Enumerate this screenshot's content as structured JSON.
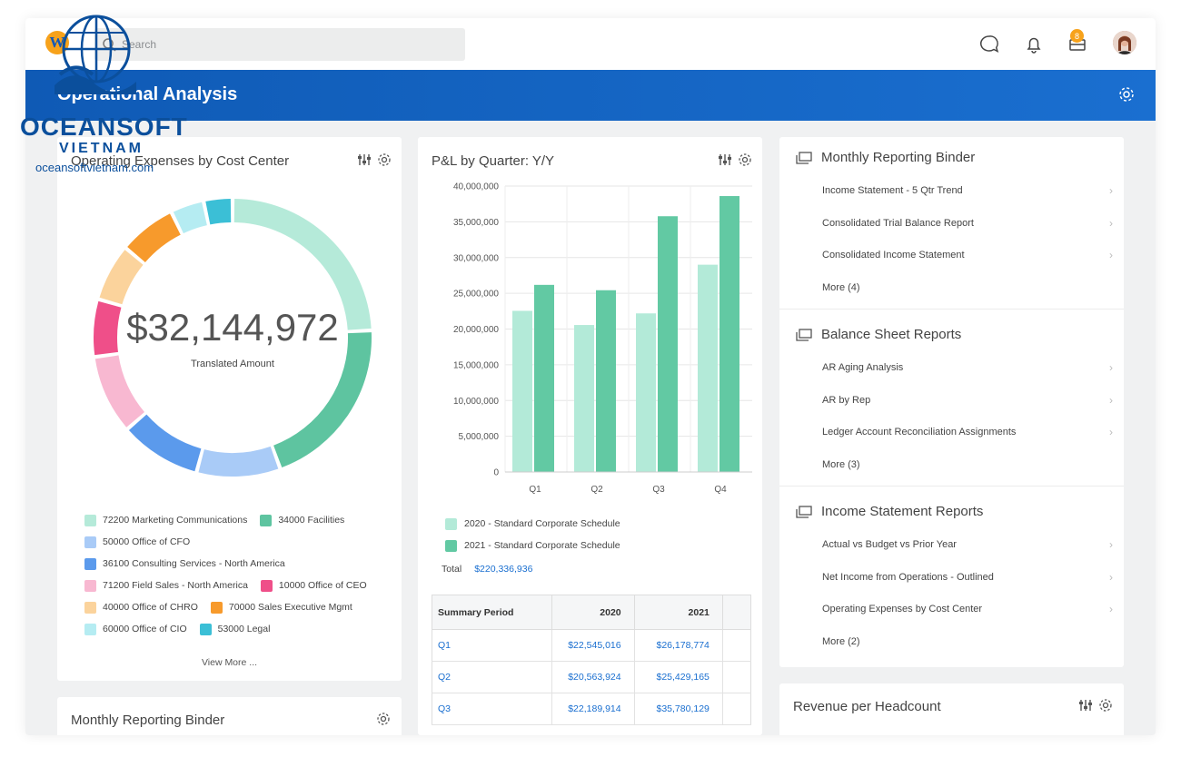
{
  "topbar": {
    "logo_letter": "W",
    "search_placeholder": "Search",
    "inbox_badge": "8"
  },
  "banner": {
    "title": "Operational Analysis"
  },
  "donut_card": {
    "title": "Operating Expenses by Cost Center",
    "center_value": "$32,144,972",
    "center_label": "Translated Amount",
    "view_more": "View More ...",
    "legend": [
      {
        "label": "72200 Marketing Communications",
        "color": "#b5ead9"
      },
      {
        "label": "34000 Facilities",
        "color": "#5ec4a0"
      },
      {
        "label": "50000 Office of CFO",
        "color": "#a9cbf7"
      },
      {
        "label": "36100 Consulting Services - North America",
        "color": "#5b9aec"
      },
      {
        "label": "71200 Field Sales - North America",
        "color": "#f8b8d1"
      },
      {
        "label": "10000 Office of CEO",
        "color": "#ef4f89"
      },
      {
        "label": "40000 Office of CHRO",
        "color": "#fbd39c"
      },
      {
        "label": "70000 Sales Executive Mgmt",
        "color": "#f79a2c"
      },
      {
        "label": "60000 Office of CIO",
        "color": "#b5ecf2"
      },
      {
        "label": "53000 Legal",
        "color": "#3bbfd6"
      }
    ]
  },
  "chart_data": {
    "type": "bar",
    "title": "P&L by Quarter: Y/Y",
    "categories": [
      "Q1",
      "Q2",
      "Q3",
      "Q4"
    ],
    "series": [
      {
        "name": "2020 - Standard Corporate Schedule",
        "values": [
          22545016,
          20563924,
          22189914,
          29000000
        ],
        "color": "#b3ead8"
      },
      {
        "name": "2021 - Standard Corporate Schedule",
        "values": [
          26178774,
          25429165,
          35780129,
          38600000
        ],
        "color": "#62c9a3"
      }
    ],
    "ylim": [
      0,
      40000000
    ],
    "yticks": [
      "40,000,000",
      "35,000,000",
      "30,000,000",
      "25,000,000",
      "20,000,000",
      "15,000,000",
      "10,000,000",
      "5,000,000",
      "0"
    ],
    "grid": true
  },
  "pl_card": {
    "total_label": "Total",
    "total_value": "$220,336,936",
    "table": {
      "headers": [
        "Summary Period",
        "2020",
        "2021"
      ],
      "rows": [
        [
          "Q1",
          "$22,545,016",
          "$26,178,774"
        ],
        [
          "Q2",
          "$20,563,924",
          "$25,429,165"
        ],
        [
          "Q3",
          "$22,189,914",
          "$35,780,129"
        ]
      ]
    }
  },
  "reports_card": {
    "sections": [
      {
        "title": "Monthly Reporting Binder",
        "items": [
          "Income Statement - 5 Qtr Trend",
          "Consolidated Trial Balance Report",
          "Consolidated Income Statement"
        ],
        "more": "More (4)"
      },
      {
        "title": "Balance Sheet Reports",
        "items": [
          "AR Aging Analysis",
          "AR by Rep",
          "Ledger Account Reconciliation Assignments"
        ],
        "more": "More (3)"
      },
      {
        "title": "Income Statement Reports",
        "items": [
          "Actual vs Budget vs Prior Year",
          "Net Income from Operations - Outlined",
          "Operating Expenses by Cost Center"
        ],
        "more": "More (2)"
      }
    ]
  },
  "bottom_cards": {
    "binder_title": "Monthly Reporting Binder",
    "revenue_title": "Revenue per Headcount"
  },
  "watermark": {
    "name": "OCEANSOFT",
    "country": "VIETNAM",
    "url": "oceansoftvietnam.com"
  }
}
